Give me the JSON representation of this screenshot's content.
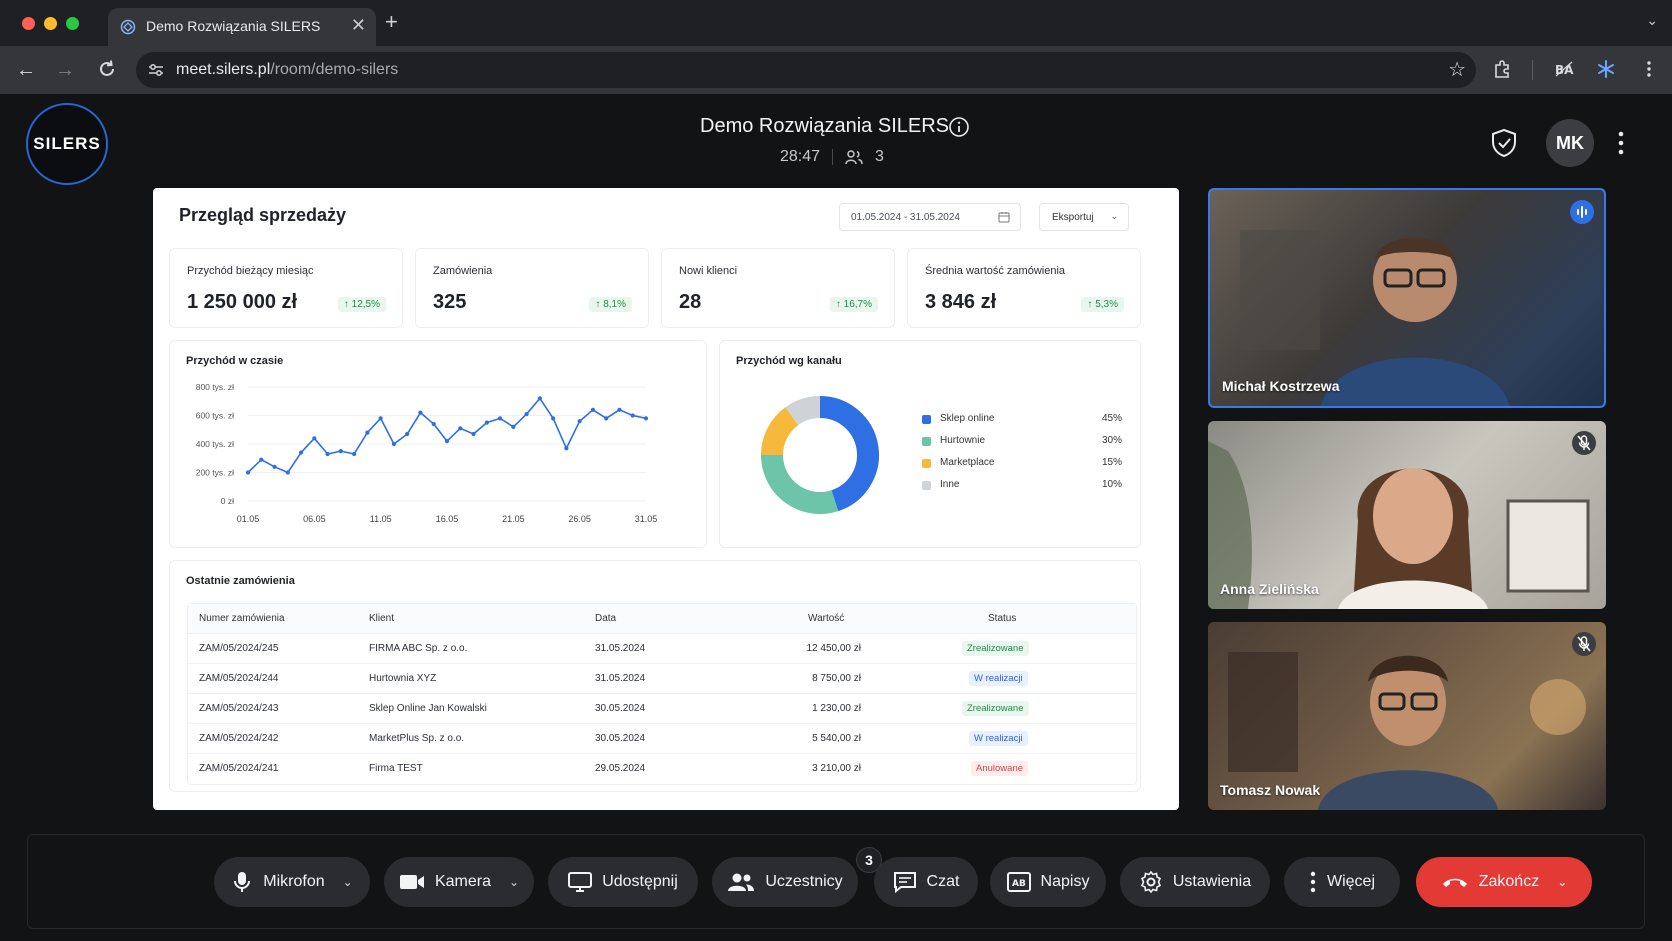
{
  "browser": {
    "tab_title": "Demo Rozwiązania SILERS",
    "url_host": "meet.silers.pl",
    "url_path": "/room/demo-silers",
    "colors": {
      "red": "#ff5f57",
      "yellow": "#febc2e",
      "green": "#28c840"
    }
  },
  "meeting": {
    "logo_text": "SILERS",
    "title": "Demo Rozwiązania SILERS",
    "timer": "28:47",
    "participant_count": "3",
    "user_initials": "MK"
  },
  "dashboard": {
    "title": "Przegląd sprzedaży",
    "date_range": "01.05.2024 - 31.05.2024",
    "export_label": "Eksportuj",
    "kpis": [
      {
        "label": "Przychód bieżący miesiąc",
        "value": "1 250 000 zł",
        "delta": "↑ 12,5%"
      },
      {
        "label": "Zamówienia",
        "value": "325",
        "delta": "↑ 8,1%"
      },
      {
        "label": "Nowi klienci",
        "value": "28",
        "delta": "↑ 16,7%"
      },
      {
        "label": "Średnia wartość zamówienia",
        "value": "3 846 zł",
        "delta": "↑ 5,3%"
      }
    ],
    "line_chart": {
      "title": "Przychód w czasie",
      "y_ticks": [
        "800 tys. zł",
        "600 tys. zł",
        "400 tys. zł",
        "200 tys. zł",
        "0 zł"
      ],
      "x_ticks": [
        "01.05",
        "06.05",
        "11.05",
        "16.05",
        "21.05",
        "26.05",
        "31.05"
      ]
    },
    "donut_chart": {
      "title": "Przychód wg kanału",
      "legend": [
        {
          "name": "Sklep online",
          "pct": "45%",
          "color": "#2f6fe4"
        },
        {
          "name": "Hurtownie",
          "pct": "30%",
          "color": "#6cc5a8"
        },
        {
          "name": "Marketplace",
          "pct": "15%",
          "color": "#f6b93b"
        },
        {
          "name": "Inne",
          "pct": "10%",
          "color": "#cfd2d6"
        }
      ]
    },
    "orders": {
      "title": "Ostatnie zamówienia",
      "headers": [
        "Numer zamówienia",
        "Klient",
        "Data",
        "Wartość",
        "Status"
      ],
      "rows": [
        {
          "id": "ZAM/05/2024/245",
          "client": "FIRMA ABC Sp. z o.o.",
          "date": "31.05.2024",
          "value": "12 450,00 zł",
          "status": "Zrealizowane",
          "kind": "done"
        },
        {
          "id": "ZAM/05/2024/244",
          "client": "Hurtownia XYZ",
          "date": "31.05.2024",
          "value": "8 750,00 zł",
          "status": "W realizacji",
          "kind": "prog"
        },
        {
          "id": "ZAM/05/2024/243",
          "client": "Sklep Online Jan Kowalski",
          "date": "30.05.2024",
          "value": "1 230,00 zł",
          "status": "Zrealizowane",
          "kind": "done"
        },
        {
          "id": "ZAM/05/2024/242",
          "client": "MarketPlus Sp. z o.o.",
          "date": "30.05.2024",
          "value": "5 540,00 zł",
          "status": "W realizacji",
          "kind": "prog"
        },
        {
          "id": "ZAM/05/2024/241",
          "client": "Firma TEST",
          "date": "29.05.2024",
          "value": "3 210,00 zł",
          "status": "Anulowane",
          "kind": "cancel"
        }
      ]
    }
  },
  "chart_data": [
    {
      "type": "line",
      "title": "Przychód w czasie",
      "x": [
        "01.05",
        "02.05",
        "03.05",
        "04.05",
        "05.05",
        "06.05",
        "07.05",
        "08.05",
        "09.05",
        "10.05",
        "11.05",
        "12.05",
        "13.05",
        "14.05",
        "15.05",
        "16.05",
        "17.05",
        "18.05",
        "19.05",
        "20.05",
        "21.05",
        "22.05",
        "23.05",
        "24.05",
        "25.05",
        "26.05",
        "27.05",
        "28.05",
        "29.05",
        "30.05",
        "31.05"
      ],
      "values": [
        200,
        290,
        240,
        200,
        340,
        440,
        330,
        350,
        330,
        480,
        580,
        400,
        470,
        620,
        540,
        420,
        510,
        470,
        550,
        580,
        520,
        610,
        720,
        580,
        370,
        560,
        640,
        580,
        640,
        600,
        580
      ],
      "y_unit": "tys. zł",
      "ylim": [
        0,
        800
      ],
      "x_tick_labels": [
        "01.05",
        "06.05",
        "11.05",
        "16.05",
        "21.05",
        "26.05",
        "31.05"
      ],
      "grid": true
    },
    {
      "type": "pie",
      "title": "Przychód wg kanału",
      "categories": [
        "Sklep online",
        "Hurtownie",
        "Marketplace",
        "Inne"
      ],
      "values": [
        45,
        30,
        15,
        10
      ],
      "colors": [
        "#2f6fe4",
        "#6cc5a8",
        "#f6b93b",
        "#cfd2d6"
      ],
      "legend": "right"
    }
  ],
  "participants": [
    {
      "name": "Michał Kostrzewa",
      "state": "speaking"
    },
    {
      "name": "Anna Zielińska",
      "state": "muted"
    },
    {
      "name": "Tomasz Nowak",
      "state": "muted"
    }
  ],
  "controls": {
    "mic": "Mikrofon",
    "camera": "Kamera",
    "share": "Udostępnij",
    "participants": "Uczestnicy",
    "participants_badge": "3",
    "chat": "Czat",
    "captions": "Napisy",
    "settings": "Ustawienia",
    "more": "Więcej",
    "end": "Zakończ",
    "end_color": "#e43a36"
  }
}
